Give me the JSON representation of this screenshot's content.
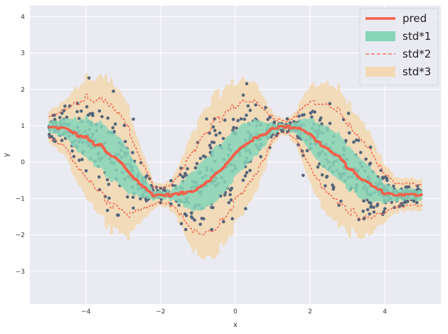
{
  "chart_data": {
    "type": "line",
    "xlabel": "x",
    "ylabel": "y",
    "xlim": [
      -5.5,
      5.5
    ],
    "ylim": [
      -3.9,
      4.3
    ],
    "xticks": [
      -4,
      -2,
      0,
      2,
      4
    ],
    "yticks": [
      -3,
      -2,
      -1,
      0,
      1,
      2,
      3,
      4
    ],
    "grid": true,
    "legend_position": "top-right",
    "colors": {
      "background": "#eaeaf2",
      "grid": "#ffffff",
      "pred": "#f4604a",
      "std1": "#86d5b8",
      "std2": "#f4604a",
      "std3": "#f2d9b3",
      "points": "#55657a"
    },
    "legend": [
      {
        "label": "pred",
        "kind": "line"
      },
      {
        "label": "std*1",
        "kind": "patch-std1"
      },
      {
        "label": "std*2",
        "kind": "dashed"
      },
      {
        "label": "std*3",
        "kind": "patch-std3"
      }
    ],
    "series": [
      {
        "name": "pred",
        "x": [
          -5.0,
          -4.8,
          -4.6,
          -4.4,
          -4.2,
          -4.0,
          -3.8,
          -3.6,
          -3.4,
          -3.2,
          -3.0,
          -2.8,
          -2.6,
          -2.4,
          -2.2,
          -2.0,
          -1.8,
          -1.6,
          -1.4,
          -1.2,
          -1.0,
          -0.8,
          -0.6,
          -0.4,
          -0.2,
          0.0,
          0.2,
          0.4,
          0.6,
          0.8,
          1.0,
          1.2,
          1.4,
          1.6,
          1.8,
          2.0,
          2.2,
          2.4,
          2.6,
          2.8,
          3.0,
          3.2,
          3.4,
          3.6,
          3.8,
          4.0,
          4.2,
          4.4,
          4.6,
          4.8,
          5.0
        ],
        "y": [
          0.95,
          0.95,
          0.93,
          0.85,
          0.72,
          0.68,
          0.5,
          0.45,
          0.2,
          0.1,
          -0.1,
          -0.35,
          -0.55,
          -0.75,
          -0.9,
          -0.9,
          -0.9,
          -0.88,
          -0.85,
          -0.8,
          -0.7,
          -0.55,
          -0.4,
          -0.2,
          0.0,
          0.25,
          0.45,
          0.6,
          0.68,
          0.8,
          0.95,
          0.97,
          0.97,
          0.96,
          0.9,
          0.75,
          0.55,
          0.4,
          0.25,
          0.1,
          -0.15,
          -0.3,
          -0.5,
          -0.6,
          -0.75,
          -0.85,
          -0.88,
          -0.9,
          -0.9,
          -0.9,
          -0.88
        ]
      },
      {
        "name": "std*1",
        "half_width": [
          0.15,
          0.18,
          0.25,
          0.35,
          0.45,
          0.55,
          0.6,
          0.65,
          0.68,
          0.68,
          0.65,
          0.55,
          0.4,
          0.25,
          0.12,
          0.1,
          0.12,
          0.2,
          0.35,
          0.5,
          0.6,
          0.68,
          0.72,
          0.72,
          0.7,
          0.65,
          0.62,
          0.55,
          0.45,
          0.3,
          0.15,
          0.08,
          0.08,
          0.15,
          0.3,
          0.45,
          0.55,
          0.6,
          0.62,
          0.62,
          0.6,
          0.55,
          0.5,
          0.45,
          0.35,
          0.25,
          0.18,
          0.15,
          0.15,
          0.15,
          0.15
        ]
      },
      {
        "name": "std*2",
        "multiplier": 2
      },
      {
        "name": "std*3",
        "multiplier": 3
      },
      {
        "name": "points",
        "count": 800,
        "x_range": [
          -5.0,
          5.0
        ]
      }
    ]
  }
}
